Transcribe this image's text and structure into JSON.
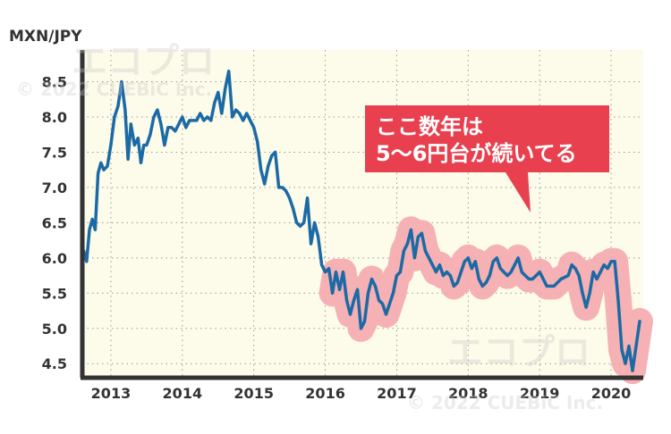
{
  "chart_data": {
    "type": "line",
    "ylabel": "MXN/JPY",
    "ylim": [
      4.3,
      8.95
    ],
    "yticks": [
      4.5,
      5.0,
      5.5,
      6.0,
      6.5,
      7.0,
      7.5,
      8.0,
      8.5
    ],
    "ytick_labels": [
      "4.5",
      "5.0",
      "5.5",
      "6.0",
      "6.5",
      "7.0",
      "7.5",
      "8.0",
      "8.5"
    ],
    "xlim": [
      2012.6,
      2020.45
    ],
    "xticks": [
      2013,
      2014,
      2015,
      2016,
      2017,
      2018,
      2019,
      2020
    ],
    "xtick_labels": [
      "2013",
      "2014",
      "2015",
      "2016",
      "2017",
      "2018",
      "2019",
      "2020"
    ],
    "grid": true,
    "annotation": {
      "line1": "ここ数年は",
      "line2": "5〜6円台が続いてる"
    },
    "watermark": {
      "logo": "エコプロ",
      "copyright": "© 2022 CUEBiC Inc."
    },
    "colors": {
      "line": "#1b6aa5",
      "highlight": "#f4a9ae",
      "callout": "#e8404f",
      "plot_bg": "#fdfbe9",
      "axis": "#333333",
      "grid": "#9a9a9a"
    },
    "series": [
      {
        "x": [
          2012.62,
          2012.66,
          2012.7,
          2012.74,
          2012.78,
          2012.82,
          2012.86,
          2012.9,
          2012.95,
          2013.0,
          2013.05,
          2013.1,
          2013.15,
          2013.2,
          2013.24,
          2013.28,
          2013.33,
          2013.38,
          2013.42,
          2013.46,
          2013.5,
          2013.55,
          2013.6,
          2013.65,
          2013.7,
          2013.75,
          2013.8,
          2013.85,
          2013.9,
          2013.95,
          2014.0,
          2014.05,
          2014.1,
          2014.15,
          2014.2,
          2014.25,
          2014.3,
          2014.35,
          2014.4,
          2014.45,
          2014.5,
          2014.55,
          2014.6,
          2014.65,
          2014.7,
          2014.75,
          2014.8,
          2014.85,
          2014.9,
          2014.95,
          2015.0,
          2015.05,
          2015.1,
          2015.15,
          2015.2,
          2015.25,
          2015.3,
          2015.35,
          2015.4,
          2015.45,
          2015.5,
          2015.55,
          2015.6,
          2015.65,
          2015.7,
          2015.75,
          2015.8,
          2015.85,
          2015.9,
          2015.95,
          2016.0,
          2016.05,
          2016.1,
          2016.15,
          2016.2,
          2016.25,
          2016.3,
          2016.35,
          2016.4,
          2016.45,
          2016.5,
          2016.55,
          2016.6,
          2016.65,
          2016.7,
          2016.75,
          2016.8,
          2016.85,
          2016.9,
          2016.95,
          2017.0,
          2017.05,
          2017.1,
          2017.15,
          2017.2,
          2017.25,
          2017.3,
          2017.35,
          2017.4,
          2017.45,
          2017.5,
          2017.55,
          2017.6,
          2017.65,
          2017.7,
          2017.75,
          2017.8,
          2017.85,
          2017.9,
          2017.95,
          2018.0,
          2018.05,
          2018.1,
          2018.15,
          2018.2,
          2018.25,
          2018.3,
          2018.35,
          2018.4,
          2018.45,
          2018.5,
          2018.55,
          2018.6,
          2018.65,
          2018.7,
          2018.75,
          2018.8,
          2018.85,
          2018.9,
          2018.95,
          2019.0,
          2019.1,
          2019.2,
          2019.3,
          2019.4,
          2019.45,
          2019.5,
          2019.55,
          2019.6,
          2019.65,
          2019.7,
          2019.75,
          2019.8,
          2019.85,
          2019.9,
          2019.95,
          2020.0,
          2020.05,
          2020.1,
          2020.15,
          2020.2,
          2020.25,
          2020.3,
          2020.35,
          2020.4
        ],
        "y": [
          6.1,
          5.95,
          6.4,
          6.55,
          6.4,
          7.2,
          7.35,
          7.25,
          7.3,
          7.6,
          8.0,
          8.15,
          8.5,
          8.1,
          7.4,
          7.9,
          7.6,
          7.7,
          7.35,
          7.6,
          7.6,
          7.75,
          8.0,
          8.1,
          7.9,
          7.6,
          7.85,
          7.85,
          7.8,
          7.9,
          8.0,
          7.85,
          7.95,
          7.95,
          7.95,
          8.05,
          7.95,
          8.0,
          7.95,
          8.2,
          8.35,
          8.05,
          8.4,
          8.65,
          8.0,
          8.1,
          8.05,
          7.95,
          8.05,
          7.95,
          7.85,
          7.65,
          7.25,
          7.05,
          7.3,
          7.45,
          7.5,
          7.0,
          7.0,
          6.95,
          6.85,
          6.7,
          6.5,
          6.45,
          6.5,
          6.85,
          6.2,
          6.5,
          6.3,
          5.9,
          5.8,
          5.85,
          5.5,
          5.8,
          5.55,
          5.8,
          5.4,
          5.2,
          5.4,
          5.55,
          5.0,
          5.1,
          5.5,
          5.7,
          5.6,
          5.4,
          5.35,
          5.2,
          5.35,
          5.5,
          5.75,
          5.8,
          6.1,
          6.2,
          6.4,
          6.0,
          6.3,
          6.35,
          6.1,
          6.0,
          5.9,
          5.8,
          5.9,
          5.75,
          5.8,
          5.75,
          5.6,
          5.65,
          5.8,
          5.95,
          6.0,
          5.85,
          5.95,
          5.7,
          5.6,
          5.65,
          5.75,
          5.95,
          6.0,
          5.85,
          5.8,
          5.75,
          5.8,
          5.9,
          6.0,
          5.8,
          5.75,
          5.7,
          5.7,
          5.75,
          5.8,
          5.6,
          5.6,
          5.7,
          5.75,
          5.9,
          5.85,
          5.75,
          5.5,
          5.3,
          5.5,
          5.8,
          5.7,
          5.8,
          5.9,
          5.85,
          5.95,
          5.95,
          5.4,
          4.7,
          4.5,
          4.75,
          4.4,
          4.75,
          5.1
        ]
      }
    ]
  }
}
